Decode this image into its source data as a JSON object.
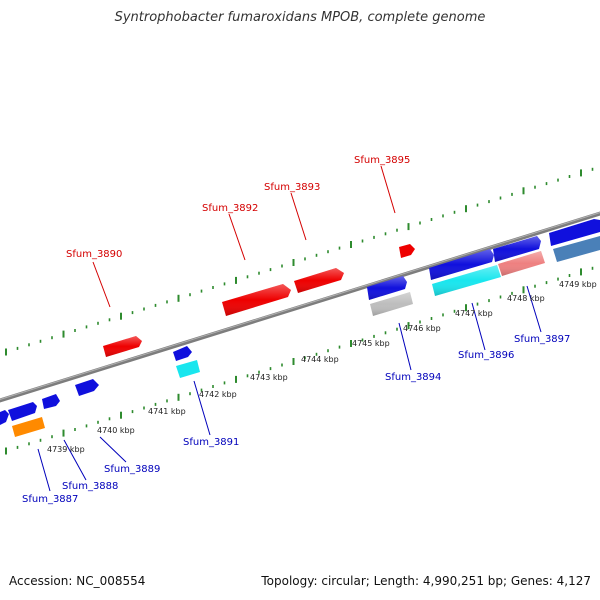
{
  "title": "Syntrophobacter fumaroxidans MPOB, complete genome",
  "footer": {
    "accession": "Accession: NC_008554",
    "stats": "Topology: circular; Length: 4,990,251 bp; Genes: 4,127"
  },
  "colors": {
    "backbone": "#8a8a8a",
    "tick": "#2e8b2e",
    "forward_label": "#d40000",
    "reverse_label": "#0000bb",
    "red": "#ee0000",
    "blue": "#1010dd",
    "cyan": "#19e6ee",
    "orange": "#ff8a00",
    "gray": "#bdbdbd",
    "pink": "#ee8080",
    "steel": "#4a80b8"
  },
  "scale_labels": [
    "4739 kbp",
    "4740 kbp",
    "4741 kbp",
    "4742 kbp",
    "4743 kbp",
    "4744 kbp",
    "4745 kbp",
    "4746 kbp",
    "4747 kbp",
    "4748 kbp",
    "4749 kbp"
  ],
  "forward_gene_labels": [
    "Sfum_3890",
    "Sfum_3892",
    "Sfum_3893",
    "Sfum_3895"
  ],
  "reverse_gene_labels": [
    "Sfum_3887",
    "Sfum_3888",
    "Sfum_3889",
    "Sfum_3891",
    "Sfum_3894",
    "Sfum_3896",
    "Sfum_3897"
  ]
}
